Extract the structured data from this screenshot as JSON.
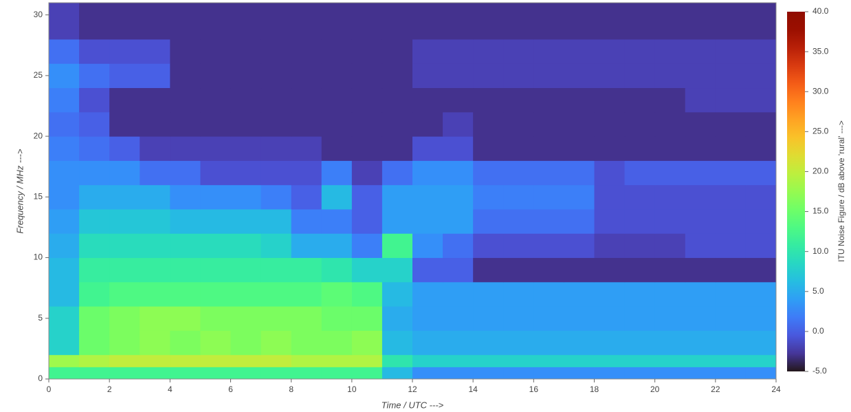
{
  "chart_data": {
    "type": "heatmap",
    "xlabel": "Time / UTC --->",
    "ylabel": "Frequency / MHz --->",
    "colorbar_label": "ITU Noise Figure / dB above 'rural' --->",
    "colormap": "turbo",
    "x_bins": [
      0,
      1,
      2,
      3,
      4,
      5,
      6,
      7,
      8,
      9,
      10,
      11,
      12,
      13,
      14,
      15,
      16,
      17,
      18,
      19,
      20,
      21,
      22,
      23,
      24
    ],
    "y_bins": [
      0,
      1,
      2,
      4,
      6,
      8,
      10,
      12,
      14,
      16,
      18,
      20,
      22,
      24,
      26,
      28,
      31
    ],
    "z": [
      [
        12,
        12,
        12,
        12,
        12,
        12,
        12,
        12,
        12,
        12,
        12,
        6,
        3,
        3,
        3,
        3,
        3,
        3,
        3,
        3,
        3,
        3,
        3,
        3
      ],
      [
        18,
        19,
        20,
        20,
        20,
        20,
        20,
        20,
        19,
        19,
        19,
        10,
        8,
        8,
        8,
        8,
        8,
        8,
        8,
        8,
        8,
        8,
        8,
        8
      ],
      [
        8,
        15,
        16,
        17,
        16,
        17,
        16,
        17,
        16,
        16,
        17,
        6,
        5,
        5,
        5,
        5,
        5,
        5,
        5,
        5,
        5,
        5,
        5,
        5
      ],
      [
        8,
        15,
        16,
        17,
        17,
        16,
        16,
        16,
        16,
        15,
        15,
        5,
        4,
        4,
        4,
        4,
        4,
        4,
        4,
        4,
        4,
        4,
        4,
        4
      ],
      [
        6,
        12,
        13,
        13,
        13,
        13,
        13,
        13,
        13,
        14,
        13,
        6,
        4,
        4,
        4,
        4,
        4,
        4,
        4,
        4,
        4,
        4,
        4,
        4
      ],
      [
        6,
        11,
        11,
        11,
        11,
        11,
        11,
        11,
        11,
        10,
        8,
        8,
        0,
        0,
        -3,
        -3,
        -3,
        -3,
        -3,
        -3,
        -3,
        -3,
        -3,
        -3
      ],
      [
        5,
        9,
        9,
        9,
        9,
        9,
        9,
        8,
        5,
        5,
        2,
        12,
        3,
        1,
        -1,
        -1,
        -1,
        -1,
        -2,
        -2,
        -2,
        -1,
        -1,
        -1
      ],
      [
        4,
        7,
        7,
        7,
        6,
        6,
        6,
        6,
        2,
        2,
        0,
        4,
        4,
        4,
        1,
        1,
        1,
        1,
        -1,
        -1,
        -1,
        -1,
        -1,
        -1
      ],
      [
        3,
        5,
        5,
        5,
        3,
        3,
        3,
        2,
        0,
        6,
        0,
        4,
        4,
        4,
        2,
        2,
        2,
        2,
        -1,
        -1,
        -1,
        -1,
        -1,
        -1
      ],
      [
        3,
        3,
        3,
        1,
        1,
        -1,
        -1,
        -1,
        -1,
        2,
        -2,
        1,
        3,
        3,
        1,
        1,
        1,
        1,
        -1,
        0,
        0,
        0,
        0,
        0
      ],
      [
        2,
        1,
        0,
        -2,
        -2,
        -2,
        -2,
        -2,
        -2,
        -3,
        -3,
        -3,
        -1,
        -1,
        -3,
        -3,
        -3,
        -3,
        -3,
        -3,
        -3,
        -3,
        -3,
        -3
      ],
      [
        1,
        0,
        -3,
        -3,
        -3,
        -3,
        -3,
        -3,
        -3,
        -3,
        -3,
        -3,
        -3,
        -2,
        -3,
        -3,
        -3,
        -3,
        -3,
        -3,
        -3,
        -3,
        -3,
        -3
      ],
      [
        2,
        -1,
        -3,
        -3,
        -3,
        -3,
        -3,
        -3,
        -3,
        -3,
        -3,
        -3,
        -3,
        -3,
        -3,
        -3,
        -3,
        -3,
        -3,
        -3,
        -3,
        -2,
        -2,
        -2
      ],
      [
        3,
        1,
        0,
        0,
        -3,
        -3,
        -3,
        -3,
        -3,
        -3,
        -3,
        -3,
        -2,
        -2,
        -2,
        -2,
        -2,
        -2,
        -2,
        -2,
        -2,
        -2,
        -2,
        -2
      ],
      [
        1,
        -1,
        -1,
        -1,
        -3,
        -3,
        -3,
        -3,
        -3,
        -3,
        -3,
        -3,
        -2,
        -2,
        -2,
        -2,
        -2,
        -2,
        -2,
        -2,
        -2,
        -2,
        -2,
        -2
      ],
      [
        -2,
        -3,
        -3,
        -3,
        -3,
        -3,
        -3,
        -3,
        -3,
        -3,
        -3,
        -3,
        -3,
        -3,
        -3,
        -3,
        -3,
        -3,
        -3,
        -3,
        -3,
        -3,
        -3,
        -3
      ]
    ],
    "xlim": [
      0,
      24
    ],
    "xticks": [
      0,
      2,
      4,
      6,
      8,
      10,
      12,
      14,
      16,
      18,
      20,
      22,
      24
    ],
    "ylim": [
      0,
      31
    ],
    "yticks": [
      0,
      5,
      10,
      15,
      20,
      25,
      30
    ],
    "zlim": [
      -5,
      40
    ],
    "zticks": [
      {
        "value": -5,
        "label": "-5.0"
      },
      {
        "value": 0,
        "label": "0.0"
      },
      {
        "value": 5,
        "label": "5.0"
      },
      {
        "value": 10,
        "label": "10.0"
      },
      {
        "value": 15,
        "label": "15.0"
      },
      {
        "value": 20,
        "label": "20.0"
      },
      {
        "value": 25,
        "label": "25.0"
      },
      {
        "value": 30,
        "label": "30.0"
      },
      {
        "value": 35,
        "label": "35.0"
      },
      {
        "value": 40,
        "label": "40.0"
      }
    ]
  }
}
